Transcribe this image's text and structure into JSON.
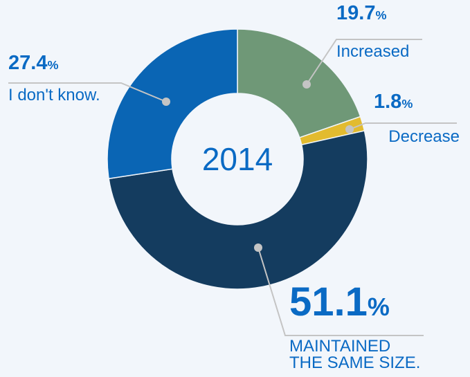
{
  "chart_data": {
    "type": "donut",
    "center_label": "2014",
    "categories": [
      "Increased",
      "Decrease",
      "MAINTAINED\nTHE SAME SIZE.",
      "I don't know."
    ],
    "values": [
      19.7,
      1.8,
      51.1,
      27.4
    ],
    "value_labels": [
      "19.7%",
      "1.8%",
      "51.1%",
      "27.4%"
    ],
    "colors": [
      "#6f9877",
      "#e2bb2f",
      "#143c5f",
      "#0a65b4"
    ]
  }
}
